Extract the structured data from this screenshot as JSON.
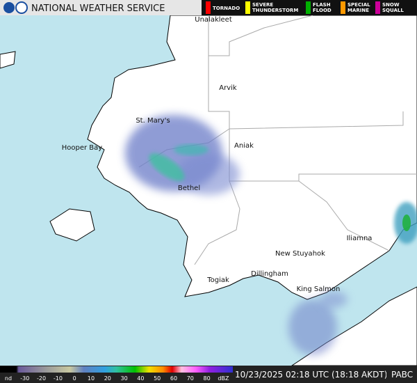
{
  "header": {
    "agency": "NATIONAL WEATHER SERVICE"
  },
  "warnings": [
    {
      "lines": [
        "TORNADO"
      ],
      "color": "#ff0000"
    },
    {
      "lines": [
        "SEVERE",
        "THUNDERSTORM"
      ],
      "color": "#ffff00"
    },
    {
      "lines": [
        "FLASH",
        "FLOOD"
      ],
      "color": "#00b000"
    },
    {
      "lines": [
        "SPECIAL",
        "MARINE"
      ],
      "color": "#ff9900"
    },
    {
      "lines": [
        "SNOW",
        "SQUALL"
      ],
      "color": "#cc0099"
    }
  ],
  "places": [
    "Unalakleet",
    "Arvik",
    "St. Mary's",
    "Hooper Bay",
    "Aniak",
    "Bethel",
    "New Stuyahok",
    "Iliamna",
    "Dillingham",
    "Togiak",
    "King Salmon"
  ],
  "scale": {
    "labels": [
      "nd",
      "-30",
      "-20",
      "-10",
      "0",
      "10",
      "20",
      "30",
      "40",
      "50",
      "60",
      "70",
      "80",
      "dBZ"
    ]
  },
  "footer": {
    "timestamp": "10/23/2025 02:18 UTC (18:18 AKDT)",
    "station": "PABC"
  }
}
